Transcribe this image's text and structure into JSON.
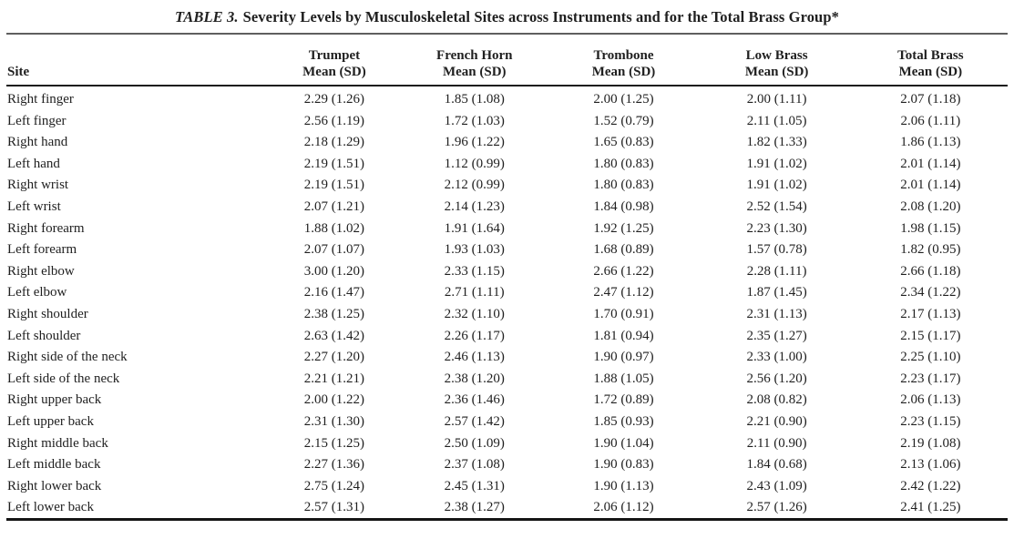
{
  "table": {
    "title_label": "TABLE 3.",
    "title_text": "Severity Levels by Musculoskeletal Sites across Instruments and for the Total Brass Group*",
    "site_header": "Site",
    "columns": [
      {
        "name": "Trumpet",
        "sub": "Mean (SD)"
      },
      {
        "name": "French Horn",
        "sub": "Mean (SD)"
      },
      {
        "name": "Trombone",
        "sub": "Mean (SD)"
      },
      {
        "name": "Low Brass",
        "sub": "Mean (SD)"
      },
      {
        "name": "Total Brass",
        "sub": "Mean (SD)"
      }
    ],
    "rows": [
      {
        "site": "Right finger",
        "values": [
          "2.29 (1.26)",
          "1.85 (1.08)",
          "2.00 (1.25)",
          "2.00 (1.11)",
          "2.07 (1.18)"
        ]
      },
      {
        "site": "Left finger",
        "values": [
          "2.56 (1.19)",
          "1.72 (1.03)",
          "1.52 (0.79)",
          "2.11 (1.05)",
          "2.06 (1.11)"
        ]
      },
      {
        "site": "Right hand",
        "values": [
          "2.18 (1.29)",
          "1.96 (1.22)",
          "1.65 (0.83)",
          "1.82 (1.33)",
          "1.86 (1.13)"
        ]
      },
      {
        "site": "Left hand",
        "values": [
          "2.19 (1.51)",
          "1.12 (0.99)",
          "1.80 (0.83)",
          "1.91 (1.02)",
          "2.01 (1.14)"
        ]
      },
      {
        "site": "Right wrist",
        "values": [
          "2.19 (1.51)",
          "2.12 (0.99)",
          "1.80 (0.83)",
          "1.91 (1.02)",
          "2.01 (1.14)"
        ]
      },
      {
        "site": "Left wrist",
        "values": [
          "2.07 (1.21)",
          "2.14 (1.23)",
          "1.84 (0.98)",
          "2.52 (1.54)",
          "2.08 (1.20)"
        ]
      },
      {
        "site": "Right forearm",
        "values": [
          "1.88 (1.02)",
          "1.91 (1.64)",
          "1.92 (1.25)",
          "2.23 (1.30)",
          "1.98 (1.15)"
        ]
      },
      {
        "site": "Left forearm",
        "values": [
          "2.07 (1.07)",
          "1.93 (1.03)",
          "1.68 (0.89)",
          "1.57 (0.78)",
          "1.82 (0.95)"
        ]
      },
      {
        "site": "Right elbow",
        "values": [
          "3.00 (1.20)",
          "2.33 (1.15)",
          "2.66 (1.22)",
          "2.28 (1.11)",
          "2.66 (1.18)"
        ]
      },
      {
        "site": "Left elbow",
        "values": [
          "2.16 (1.47)",
          "2.71 (1.11)",
          "2.47 (1.12)",
          "1.87 (1.45)",
          "2.34 (1.22)"
        ]
      },
      {
        "site": "Right shoulder",
        "values": [
          "2.38 (1.25)",
          "2.32 (1.10)",
          "1.70 (0.91)",
          "2.31 (1.13)",
          "2.17 (1.13)"
        ]
      },
      {
        "site": "Left shoulder",
        "values": [
          "2.63 (1.42)",
          "2.26 (1.17)",
          "1.81 (0.94)",
          "2.35 (1.27)",
          "2.15 (1.17)"
        ]
      },
      {
        "site": "Right side of the neck",
        "values": [
          "2.27 (1.20)",
          "2.46 (1.13)",
          "1.90 (0.97)",
          "2.33 (1.00)",
          "2.25 (1.10)"
        ]
      },
      {
        "site": "Left side of the neck",
        "values": [
          "2.21 (1.21)",
          "2.38 (1.20)",
          "1.88 (1.05)",
          "2.56 (1.20)",
          "2.23 (1.17)"
        ]
      },
      {
        "site": "Right upper back",
        "values": [
          "2.00 (1.22)",
          "2.36 (1.46)",
          "1.72 (0.89)",
          "2.08 (0.82)",
          "2.06 (1.13)"
        ]
      },
      {
        "site": "Left upper back",
        "values": [
          "2.31 (1.30)",
          "2.57 (1.42)",
          "1.85 (0.93)",
          "2.21 (0.90)",
          "2.23 (1.15)"
        ]
      },
      {
        "site": "Right middle back",
        "values": [
          "2.15 (1.25)",
          "2.50 (1.09)",
          "1.90 (1.04)",
          "2.11 (0.90)",
          "2.19 (1.08)"
        ]
      },
      {
        "site": "Left middle back",
        "values": [
          "2.27 (1.36)",
          "2.37 (1.08)",
          "1.90 (0.83)",
          "1.84 (0.68)",
          "2.13 (1.06)"
        ]
      },
      {
        "site": "Right lower back",
        "values": [
          "2.75 (1.24)",
          "2.45 (1.31)",
          "1.90 (1.13)",
          "2.43 (1.09)",
          "2.42 (1.22)"
        ]
      },
      {
        "site": "Left lower back",
        "values": [
          "2.57 (1.31)",
          "2.38 (1.27)",
          "2.06 (1.12)",
          "2.57 (1.26)",
          "2.41 (1.25)"
        ]
      }
    ]
  }
}
